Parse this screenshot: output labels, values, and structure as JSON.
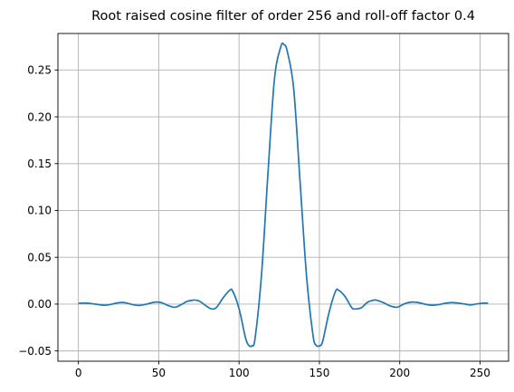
{
  "chart_data": {
    "type": "line",
    "title": "Root raised cosine filter of order 256 and roll-off factor 0.4",
    "xlabel": "",
    "ylabel": "",
    "xlim": [
      -12.75,
      267.75
    ],
    "ylim": [
      -0.061,
      0.289
    ],
    "xticks": [
      0,
      50,
      100,
      150,
      200,
      250
    ],
    "xtick_labels": [
      "0",
      "50",
      "100",
      "150",
      "200",
      "250"
    ],
    "yticks": [
      -0.05,
      0.0,
      0.05,
      0.1,
      0.15,
      0.2,
      0.25
    ],
    "ytick_labels": [
      "−0.05",
      "0.00",
      "0.05",
      "0.10",
      "0.15",
      "0.20",
      "0.25"
    ],
    "grid": true,
    "series": [
      {
        "color": "#1f77b4",
        "x": [
          0,
          4,
          8,
          12,
          16,
          20,
          24,
          27,
          30,
          34,
          38,
          42,
          46,
          49,
          52,
          56,
          60,
          64,
          68,
          72,
          74,
          76,
          80,
          83,
          86,
          90,
          94,
          96,
          100,
          104,
          106,
          108,
          110,
          114,
          118,
          122,
          126,
          128,
          130,
          134,
          138,
          142,
          146,
          148,
          150,
          152,
          156,
          160,
          162,
          166,
          170,
          172,
          176,
          180,
          184,
          186,
          190,
          194,
          198,
          200,
          204,
          208,
          212,
          216,
          220,
          224,
          228,
          232,
          236,
          240,
          244,
          248,
          252,
          255
        ],
        "y": [
          0.0009,
          0.0011,
          0.0006,
          -0.0004,
          -0.0012,
          -0.0004,
          0.0012,
          0.0017,
          0.0012,
          -0.0006,
          -0.0014,
          -0.0002,
          0.0016,
          0.0022,
          0.0014,
          -0.0016,
          -0.0034,
          -0.0005,
          0.0031,
          0.0043,
          0.004,
          0.0025,
          -0.0025,
          -0.0052,
          -0.0035,
          0.0065,
          0.0145,
          0.014,
          -0.005,
          -0.036,
          -0.044,
          -0.0445,
          -0.036,
          0.032,
          0.14,
          0.24,
          0.275,
          0.277,
          0.27,
          0.23,
          0.13,
          0.03,
          -0.033,
          -0.044,
          -0.0445,
          -0.04,
          -0.009,
          0.0135,
          0.0148,
          0.008,
          -0.0035,
          -0.0052,
          -0.004,
          0.002,
          0.0043,
          0.004,
          0.0015,
          -0.002,
          -0.0034,
          -0.0022,
          0.001,
          0.0022,
          0.0015,
          -0.0002,
          -0.0012,
          -0.0006,
          0.0008,
          0.0016,
          0.0012,
          0.0002,
          -0.0008,
          0.0002,
          0.001,
          0.001
        ]
      }
    ]
  }
}
